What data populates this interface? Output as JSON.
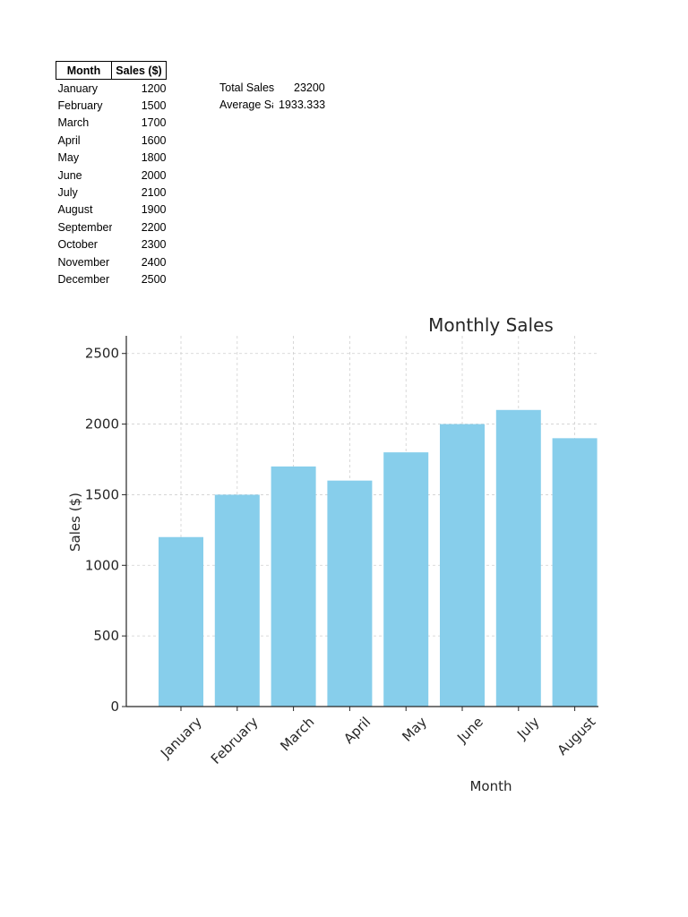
{
  "table": {
    "headers": [
      "Month",
      "Sales ($)"
    ],
    "rows": [
      {
        "month": "January",
        "sales": "1200"
      },
      {
        "month": "February",
        "sales": "1500"
      },
      {
        "month": "March",
        "sales": "1700"
      },
      {
        "month": "April",
        "sales": "1600"
      },
      {
        "month": "May",
        "sales": "1800"
      },
      {
        "month": "June",
        "sales": "2000"
      },
      {
        "month": "July",
        "sales": "2100"
      },
      {
        "month": "August",
        "sales": "1900"
      },
      {
        "month": "September",
        "sales": "2200"
      },
      {
        "month": "October",
        "sales": "2300"
      },
      {
        "month": "November",
        "sales": "2400"
      },
      {
        "month": "December",
        "sales": "2500"
      }
    ]
  },
  "summary": {
    "total_label": "Total Sales",
    "total_value": "23200",
    "average_label": "Average Sales",
    "average_value": "1933.333"
  },
  "chart_data": {
    "type": "bar",
    "title": "Monthly Sales",
    "xlabel": "Month",
    "ylabel": "Sales ($)",
    "categories": [
      "January",
      "February",
      "March",
      "April",
      "May",
      "June",
      "July",
      "August"
    ],
    "values": [
      1200,
      1500,
      1700,
      1600,
      1800,
      2000,
      2100,
      1900
    ],
    "ylim": [
      0,
      2625
    ],
    "yticks": [
      0,
      500,
      1000,
      1500,
      2000,
      2500
    ],
    "grid": true,
    "bar_color": "#87ceeb"
  }
}
